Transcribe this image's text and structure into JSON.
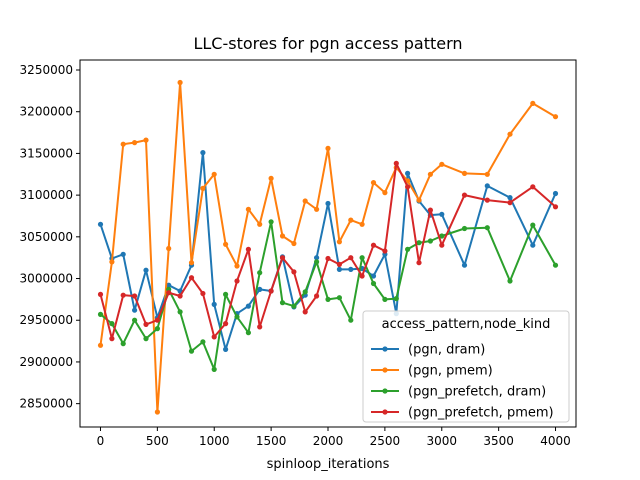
{
  "chart_data": {
    "type": "line",
    "title": "LLC-stores for pgn access pattern",
    "xlabel": "spinloop_iterations",
    "ylabel": "",
    "xlim": [
      -180,
      4180
    ],
    "ylim": [
      2822000,
      3262000
    ],
    "xticks": [
      0,
      500,
      1000,
      1500,
      2000,
      2500,
      3000,
      3500,
      4000
    ],
    "yticks": [
      2850000,
      2900000,
      2950000,
      3000000,
      3050000,
      3100000,
      3150000,
      3200000,
      3250000
    ],
    "grid": false,
    "legend": {
      "title": "access_pattern,node_kind",
      "placement": "lower-right"
    },
    "series": [
      {
        "name": "(pgn, dram)",
        "color": "#1f77b4",
        "x": [
          0,
          100,
          200,
          300,
          400,
          500,
          600,
          700,
          800,
          900,
          1000,
          1100,
          1200,
          1300,
          1400,
          1500,
          1600,
          1700,
          1800,
          1900,
          2000,
          2100,
          2200,
          2300,
          2400,
          2500,
          2600,
          2700,
          2800,
          2900,
          3000,
          3200,
          3400,
          3600,
          3800,
          4000
        ],
        "values": [
          3065000,
          3024000,
          3029000,
          2962000,
          3010000,
          2953000,
          2992000,
          2985000,
          3016000,
          3151000,
          2969000,
          2915000,
          2958000,
          2967000,
          2987000,
          2985000,
          3026000,
          2966000,
          2980000,
          3025000,
          3090000,
          3011000,
          3011000,
          3012000,
          3003000,
          3029000,
          2958000,
          3126000,
          3093000,
          3076000,
          3077000,
          3016000,
          3111000,
          3097000,
          3040000,
          3102000
        ]
      },
      {
        "name": "(pgn, pmem)",
        "color": "#ff7f0e",
        "x": [
          0,
          100,
          200,
          300,
          400,
          500,
          600,
          700,
          800,
          900,
          1000,
          1100,
          1200,
          1300,
          1400,
          1500,
          1600,
          1700,
          1800,
          1900,
          2000,
          2100,
          2200,
          2300,
          2400,
          2500,
          2600,
          2700,
          2800,
          2900,
          3000,
          3200,
          3400,
          3600,
          3800,
          4000
        ],
        "values": [
          2920000,
          3020000,
          3161000,
          3163000,
          3166000,
          2840000,
          3036000,
          3235000,
          3019000,
          3108000,
          3125000,
          3041000,
          3015000,
          3083000,
          3065000,
          3120000,
          3051000,
          3042000,
          3093000,
          3083000,
          3156000,
          3044000,
          3070000,
          3065000,
          3115000,
          3103000,
          3133000,
          3117000,
          3094000,
          3125000,
          3137000,
          3126000,
          3125000,
          3173000,
          3210000,
          3194000
        ]
      },
      {
        "name": "(pgn_prefetch, dram)",
        "color": "#2ca02c",
        "x": [
          0,
          100,
          200,
          300,
          400,
          500,
          600,
          700,
          800,
          900,
          1000,
          1100,
          1200,
          1300,
          1400,
          1500,
          1600,
          1700,
          1800,
          1900,
          2000,
          2100,
          2200,
          2300,
          2400,
          2500,
          2600,
          2700,
          2800,
          2900,
          3000,
          3200,
          3400,
          3600,
          3800,
          4000
        ],
        "values": [
          2957000,
          2946000,
          2922000,
          2950000,
          2928000,
          2940000,
          2987000,
          2960000,
          2913000,
          2924000,
          2891000,
          2981000,
          2954000,
          2935000,
          3007000,
          3068000,
          2971000,
          2967000,
          2984000,
          3020000,
          2975000,
          2977000,
          2950000,
          3025000,
          2994000,
          2975000,
          2976000,
          3035000,
          3043000,
          3045000,
          3051000,
          3060000,
          3061000,
          2997000,
          3064000,
          3016000
        ]
      },
      {
        "name": "(pgn_prefetch, pmem)",
        "color": "#d62728",
        "x": [
          0,
          100,
          200,
          300,
          400,
          500,
          600,
          700,
          800,
          900,
          1000,
          1100,
          1200,
          1300,
          1400,
          1500,
          1600,
          1700,
          1800,
          1900,
          2000,
          2100,
          2200,
          2300,
          2400,
          2500,
          2600,
          2700,
          2800,
          2900,
          3000,
          3200,
          3400,
          3600,
          3800,
          4000
        ],
        "values": [
          2981000,
          2928000,
          2980000,
          2979000,
          2945000,
          2950000,
          2983000,
          2979000,
          3001000,
          2982000,
          2930000,
          2946000,
          2997000,
          3035000,
          2942000,
          2985000,
          3025000,
          3008000,
          2960000,
          2979000,
          3024000,
          3017000,
          3025000,
          3003000,
          3040000,
          3033000,
          3138000,
          3110000,
          3019000,
          3082000,
          3040000,
          3100000,
          3094000,
          3091000,
          3110000,
          3086000
        ]
      }
    ]
  }
}
